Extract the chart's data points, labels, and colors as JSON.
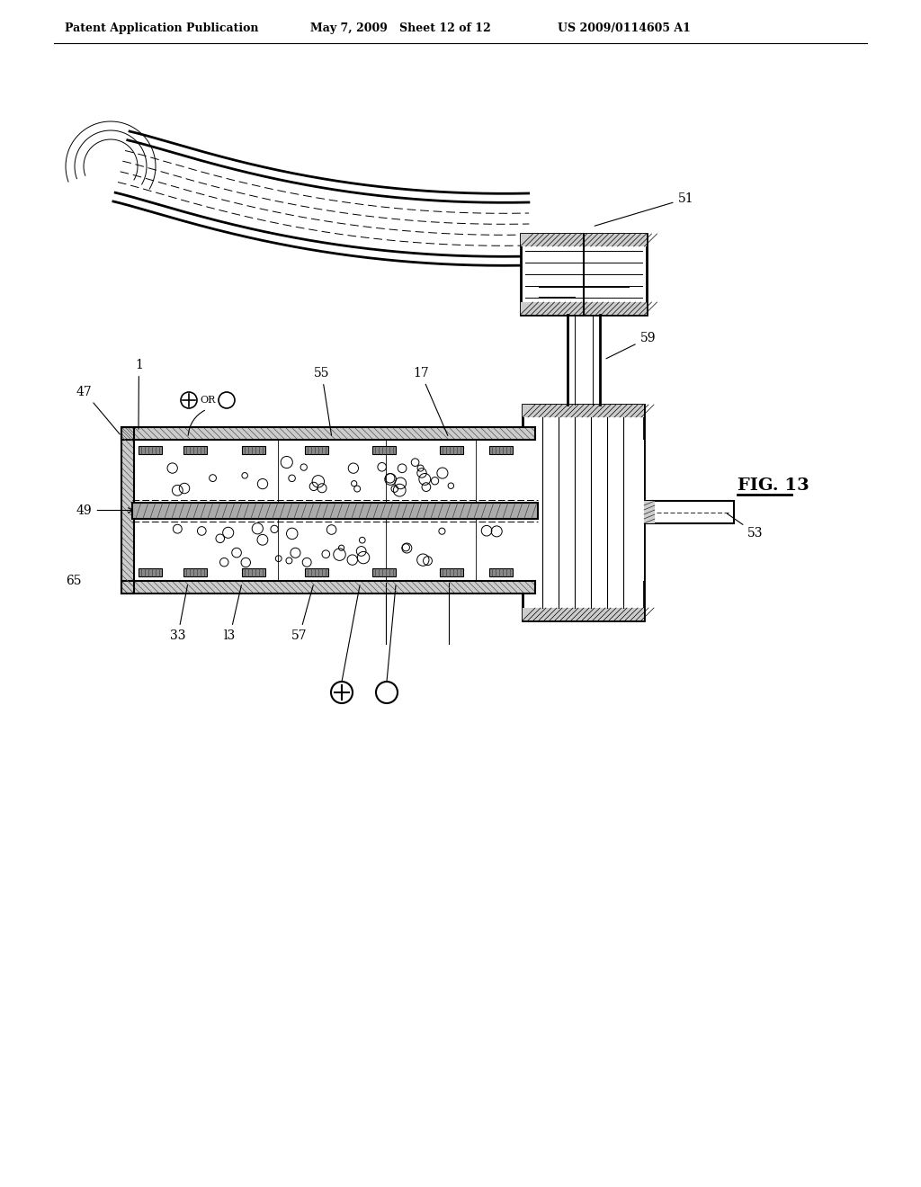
{
  "header_left": "Patent Application Publication",
  "header_mid": "May 7, 2009   Sheet 12 of 12",
  "header_right": "US 2009/0114605 A1",
  "fig_label": "FIG. 13",
  "bg_color": "#ffffff",
  "line_color": "#000000"
}
